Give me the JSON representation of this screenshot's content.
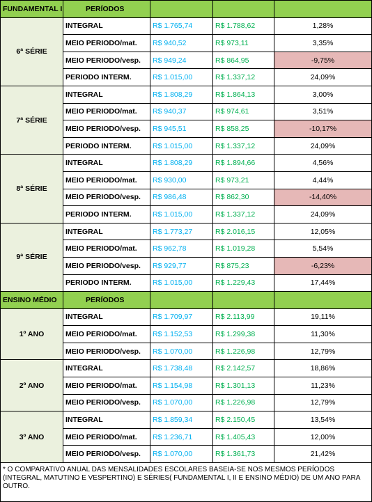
{
  "sections": [
    {
      "header": [
        "FUNDAMENTAL II",
        "PERÍODOS"
      ],
      "groups": [
        {
          "label": "6ª SÉRIE",
          "rows": [
            [
              "INTEGRAL",
              "R$ 1.765,74",
              "R$ 1.788,62",
              "1,28%"
            ],
            [
              "MEIO PERIODO/mat.",
              "R$ 940,52",
              "R$ 973,11",
              "3,35%"
            ],
            [
              "MEIO PERIODO/vesp.",
              "R$ 949,24",
              "R$ 864,95",
              "-9,75%"
            ],
            [
              "PERIODO INTERM.",
              "R$ 1.015,00",
              "R$ 1.337,12",
              "24,09%"
            ]
          ]
        },
        {
          "label": "7ª SÉRIE",
          "rows": [
            [
              "INTEGRAL",
              "R$ 1.808,29",
              "R$ 1.864,13",
              "3,00%"
            ],
            [
              "MEIO PERIODO/mat.",
              "R$ 940,37",
              "R$ 974,61",
              "3,51%"
            ],
            [
              "MEIO PERIODO/vesp.",
              "R$ 945,51",
              "R$ 858,25",
              "-10,17%"
            ],
            [
              "PERIODO INTERM.",
              "R$ 1.015,00",
              "R$ 1.337,12",
              "24,09%"
            ]
          ]
        },
        {
          "label": "8ª SÉRIE",
          "rows": [
            [
              "INTEGRAL",
              "R$ 1.808,29",
              "R$ 1.894,66",
              "4,56%"
            ],
            [
              "MEIO PERIODO/mat.",
              "R$ 930,00",
              "R$ 973,21",
              "4,44%"
            ],
            [
              "MEIO PERIODO/vesp.",
              "R$ 986,48",
              "R$ 862,30",
              "-14,40%"
            ],
            [
              "PERIODO INTERM.",
              "R$ 1.015,00",
              "R$ 1.337,12",
              "24,09%"
            ]
          ]
        },
        {
          "label": "9ª SÉRIE",
          "rows": [
            [
              "INTEGRAL",
              "R$ 1.773,27",
              "R$ 2.016,15",
              "12,05%"
            ],
            [
              "MEIO PERIODO/mat.",
              "R$ 962,78",
              "R$ 1.019,28",
              "5,54%"
            ],
            [
              "MEIO PERIODO/vesp.",
              "R$ 929,77",
              "R$ 875,23",
              "-6,23%"
            ],
            [
              "PERIODO INTERM.",
              "R$ 1.015,00",
              "R$ 1.229,43",
              "17,44%"
            ]
          ]
        }
      ]
    },
    {
      "header": [
        "ENSINO MÉDIO",
        "PERÍODOS"
      ],
      "groups": [
        {
          "label": "1º ANO",
          "rows": [
            [
              "INTEGRAL",
              "R$ 1.709,97",
              "R$ 2.113,99",
              "19,11%"
            ],
            [
              "MEIO PERIODO/mat.",
              "R$ 1.152,53",
              "R$ 1.299,38",
              "11,30%"
            ],
            [
              "MEIO PERIODO/vesp.",
              "R$ 1.070,00",
              "R$ 1.226,98",
              "12,79%"
            ]
          ]
        },
        {
          "label": "2º ANO",
          "rows": [
            [
              "INTEGRAL",
              "R$ 1.738,48",
              "R$ 2.142,57",
              "18,86%"
            ],
            [
              "MEIO PERIODO/mat.",
              "R$ 1.154,98",
              "R$ 1.301,13",
              "11,23%"
            ],
            [
              "MEIO PERIODO/vesp.",
              "R$ 1.070,00",
              "R$ 1.226,98",
              "12,79%"
            ]
          ]
        },
        {
          "label": "3º ANO",
          "rows": [
            [
              "INTEGRAL",
              "R$ 1.859,34",
              "R$ 2.150,45",
              "13,54%"
            ],
            [
              "MEIO PERIODO/mat.",
              "R$ 1.236,71",
              "R$ 1.405,43",
              "12,00%"
            ],
            [
              "MEIO PERIODO/vesp.",
              "R$ 1.070,00",
              "R$ 1.361,73",
              "21,42%"
            ]
          ]
        }
      ]
    }
  ],
  "footnote": "* O COMPARATIVO ANUAL DAS MENSALIDADES ESCOLARES BASEIA-SE  NOS MESMOS PERÍODOS (INTEGRAL, MATUTINO E VESPERTINO) E SÉRIES( FUNDAMENTAL I, II E ENSINO MÉDIO) DE UM ANO PARA OUTRO."
}
